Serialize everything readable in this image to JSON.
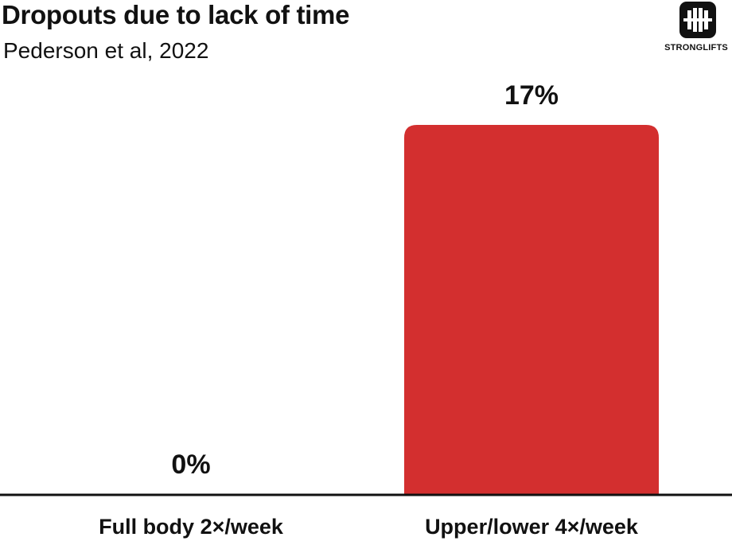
{
  "title": "Dropouts due to lack of time",
  "subtitle": "Pederson et al, 2022",
  "logo": {
    "text": "STRONGLIFTS",
    "icon": "barbell-logo-icon"
  },
  "colors": {
    "bar": "#d32f2f",
    "text": "#111111",
    "axis": "#111111"
  },
  "chart_data": {
    "type": "bar",
    "title": "Dropouts due to lack of time",
    "subtitle": "Pederson et al, 2022",
    "categories": [
      "Full body 2×/week",
      "Upper/lower 4×/week"
    ],
    "values": [
      0,
      17
    ],
    "data_labels": [
      "0%",
      "17%"
    ],
    "xlabel": "",
    "ylabel": "",
    "ylim": [
      0,
      17
    ],
    "grid": false,
    "legend": "none"
  }
}
